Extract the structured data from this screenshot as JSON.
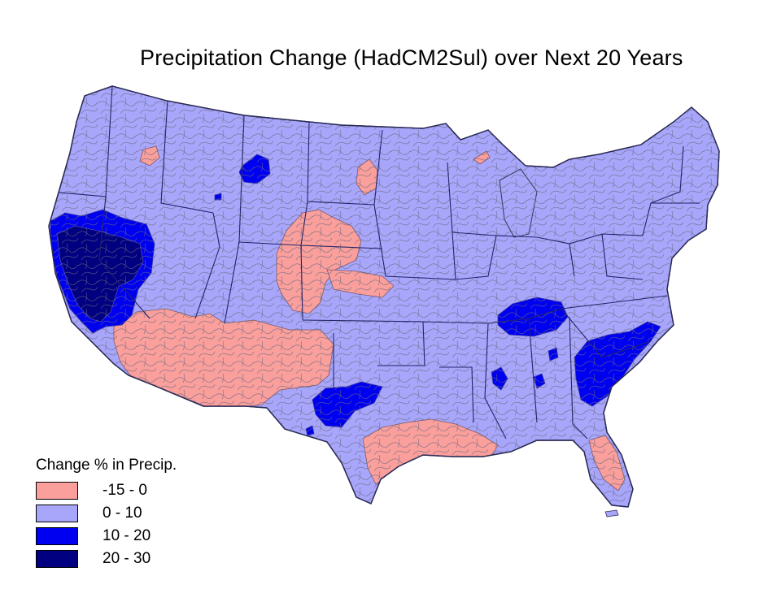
{
  "map": {
    "title": "Precipitation Change (HadCM2Sul) over Next 20 Years",
    "legend": {
      "title": "Change % in Precip.",
      "items": [
        {
          "label": "-15 - 0",
          "color": "#fa9f9c"
        },
        {
          "label": "0 - 10",
          "color": "#a8a6fa"
        },
        {
          "label": "10 - 20",
          "color": "#0000f0"
        },
        {
          "label": "20 - 30",
          "color": "#000080"
        }
      ]
    },
    "colors": {
      "background": "#ffffff",
      "region_border": "#555555",
      "state_border": "#222266"
    }
  }
}
